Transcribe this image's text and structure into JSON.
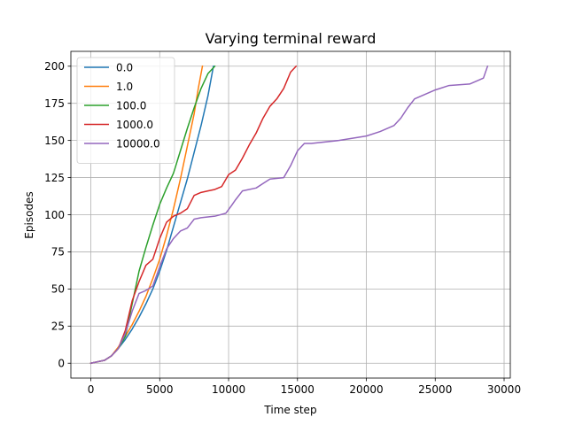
{
  "chart_data": {
    "type": "line",
    "title": "Varying terminal reward",
    "xlabel": "Time step",
    "ylabel": "Episodes",
    "xlim": [
      -1450,
      30450
    ],
    "ylim": [
      -10,
      210
    ],
    "xticks": [
      0,
      5000,
      10000,
      15000,
      20000,
      25000,
      30000
    ],
    "yticks": [
      0,
      25,
      50,
      75,
      100,
      125,
      150,
      175,
      200
    ],
    "grid": true,
    "legend": "top-left",
    "series": [
      {
        "name": "0.0",
        "color": "#1f77b4",
        "points": [
          [
            0,
            0
          ],
          [
            500,
            1
          ],
          [
            1000,
            2
          ],
          [
            1500,
            5
          ],
          [
            2000,
            10
          ],
          [
            2500,
            16
          ],
          [
            3000,
            23
          ],
          [
            3500,
            31
          ],
          [
            4000,
            40
          ],
          [
            4500,
            50
          ],
          [
            5000,
            62
          ],
          [
            5500,
            76
          ],
          [
            6000,
            92
          ],
          [
            6500,
            108
          ],
          [
            7000,
            124
          ],
          [
            7500,
            142
          ],
          [
            8000,
            160
          ],
          [
            8500,
            180
          ],
          [
            8700,
            190
          ],
          [
            8900,
            200
          ]
        ]
      },
      {
        "name": "1.0",
        "color": "#ff7f0e",
        "points": [
          [
            0,
            0
          ],
          [
            500,
            1
          ],
          [
            1000,
            2
          ],
          [
            1500,
            5
          ],
          [
            2000,
            11
          ],
          [
            2500,
            18
          ],
          [
            3000,
            26
          ],
          [
            3500,
            35
          ],
          [
            4000,
            45
          ],
          [
            4500,
            57
          ],
          [
            5000,
            70
          ],
          [
            5500,
            86
          ],
          [
            6000,
            104
          ],
          [
            6500,
            124
          ],
          [
            7000,
            146
          ],
          [
            7500,
            168
          ],
          [
            7800,
            185
          ],
          [
            8100,
            200
          ]
        ]
      },
      {
        "name": "100.0",
        "color": "#2ca02c",
        "points": [
          [
            0,
            0
          ],
          [
            500,
            1
          ],
          [
            1000,
            2
          ],
          [
            1500,
            5
          ],
          [
            2000,
            10
          ],
          [
            2500,
            18
          ],
          [
            3000,
            40
          ],
          [
            3500,
            62
          ],
          [
            4000,
            78
          ],
          [
            4500,
            93
          ],
          [
            5000,
            107
          ],
          [
            5500,
            118
          ],
          [
            6000,
            128
          ],
          [
            6500,
            143
          ],
          [
            7000,
            158
          ],
          [
            7500,
            172
          ],
          [
            8000,
            185
          ],
          [
            8500,
            195
          ],
          [
            9000,
            200
          ]
        ]
      },
      {
        "name": "1000.0",
        "color": "#d62728",
        "points": [
          [
            0,
            0
          ],
          [
            500,
            1
          ],
          [
            1000,
            2
          ],
          [
            1500,
            5
          ],
          [
            2000,
            10
          ],
          [
            2500,
            22
          ],
          [
            3000,
            42
          ],
          [
            3500,
            55
          ],
          [
            4000,
            66
          ],
          [
            4500,
            70
          ],
          [
            5000,
            84
          ],
          [
            5500,
            95
          ],
          [
            6000,
            99
          ],
          [
            6500,
            101
          ],
          [
            7000,
            104
          ],
          [
            7500,
            113
          ],
          [
            8000,
            115
          ],
          [
            8500,
            116
          ],
          [
            9000,
            117
          ],
          [
            9500,
            119
          ],
          [
            10000,
            127
          ],
          [
            10500,
            130
          ],
          [
            11000,
            138
          ],
          [
            11500,
            147
          ],
          [
            12000,
            155
          ],
          [
            12500,
            165
          ],
          [
            13000,
            173
          ],
          [
            13500,
            178
          ],
          [
            14000,
            185
          ],
          [
            14500,
            196
          ],
          [
            14900,
            200
          ]
        ]
      },
      {
        "name": "10000.0",
        "color": "#9467bd",
        "points": [
          [
            0,
            0
          ],
          [
            500,
            1
          ],
          [
            1000,
            2
          ],
          [
            1500,
            5
          ],
          [
            2000,
            10
          ],
          [
            2500,
            20
          ],
          [
            3000,
            35
          ],
          [
            3500,
            47
          ],
          [
            4000,
            49
          ],
          [
            4500,
            52
          ],
          [
            5000,
            65
          ],
          [
            5500,
            77
          ],
          [
            6000,
            84
          ],
          [
            6500,
            89
          ],
          [
            7000,
            91
          ],
          [
            7500,
            97
          ],
          [
            8000,
            98
          ],
          [
            9000,
            99
          ],
          [
            9800,
            101
          ],
          [
            10200,
            106
          ],
          [
            10500,
            110
          ],
          [
            11000,
            116
          ],
          [
            12000,
            118
          ],
          [
            12500,
            121
          ],
          [
            13000,
            124
          ],
          [
            14000,
            125
          ],
          [
            14500,
            133
          ],
          [
            15000,
            143
          ],
          [
            15500,
            148
          ],
          [
            16000,
            148
          ],
          [
            18000,
            150
          ],
          [
            20000,
            153
          ],
          [
            21000,
            156
          ],
          [
            22000,
            160
          ],
          [
            22500,
            165
          ],
          [
            23000,
            172
          ],
          [
            23500,
            178
          ],
          [
            24000,
            180
          ],
          [
            25000,
            184
          ],
          [
            26000,
            187
          ],
          [
            27500,
            188
          ],
          [
            28000,
            190
          ],
          [
            28500,
            192
          ],
          [
            28800,
            200
          ]
        ]
      }
    ]
  }
}
